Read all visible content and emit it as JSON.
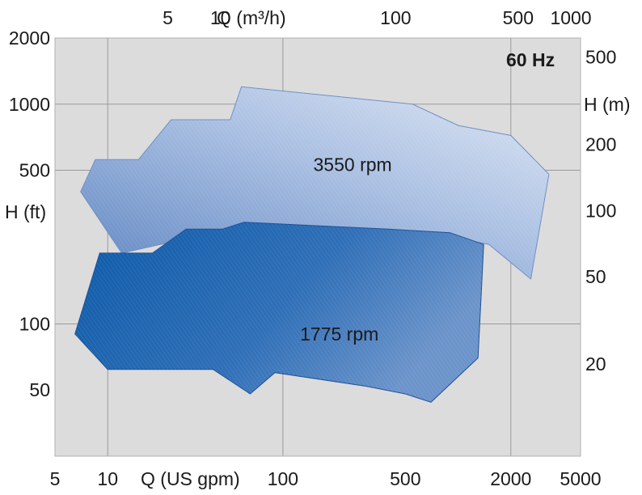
{
  "chart_data": {
    "type": "area",
    "title": "60 Hz",
    "x_bottom": {
      "label": "Q (US gpm)",
      "scale": "log",
      "range": [
        5,
        5000
      ],
      "ticks": [
        5,
        10,
        100,
        500,
        2000,
        5000
      ]
    },
    "x_top": {
      "label": "Q (m³/h)",
      "scale": "log",
      "ticks": [
        5,
        10,
        100,
        500,
        1000
      ]
    },
    "y_left": {
      "label": "H (ft)",
      "scale": "log",
      "range": [
        25,
        2000
      ],
      "ticks": [
        50,
        100,
        500,
        1000,
        2000
      ]
    },
    "y_right": {
      "label": "H (m)",
      "scale": "log",
      "ticks": [
        20,
        50,
        100,
        200,
        500
      ]
    },
    "grid": true,
    "series": [
      {
        "name": "3550 rpm",
        "color": "#c9d6ec",
        "edge": "#6f8fc4",
        "upper": [
          [
            8.5,
            560
          ],
          [
            15,
            560
          ],
          [
            23,
            850
          ],
          [
            50,
            850
          ],
          [
            58,
            1200
          ],
          [
            550,
            1000
          ],
          [
            1000,
            800
          ],
          [
            2000,
            720
          ],
          [
            3300,
            480
          ]
        ],
        "lower": [
          [
            7,
            400
          ],
          [
            12,
            210
          ],
          [
            40,
            260
          ],
          [
            160,
            230
          ],
          [
            700,
            260
          ],
          [
            1500,
            230
          ],
          [
            2600,
            160
          ],
          [
            3300,
            480
          ]
        ]
      },
      {
        "name": "1775 rpm",
        "color": "#3a6aab",
        "edge": "#1f4f96",
        "upper": [
          [
            9,
            210
          ],
          [
            18,
            210
          ],
          [
            28,
            270
          ],
          [
            45,
            270
          ],
          [
            60,
            290
          ],
          [
            400,
            270
          ],
          [
            900,
            260
          ],
          [
            1400,
            230
          ]
        ],
        "lower": [
          [
            6.5,
            90
          ],
          [
            10,
            62
          ],
          [
            40,
            62
          ],
          [
            65,
            48
          ],
          [
            90,
            60
          ],
          [
            300,
            52
          ],
          [
            500,
            48
          ],
          [
            700,
            44
          ],
          [
            1300,
            70
          ],
          [
            1400,
            230
          ]
        ]
      }
    ],
    "annotations": [
      {
        "text": "3550 rpm",
        "x": 250,
        "y": 530
      },
      {
        "text": "1775 rpm",
        "x": 210,
        "y": 90
      },
      {
        "text": "60 Hz",
        "x": 3100,
        "y": 1500
      }
    ]
  }
}
